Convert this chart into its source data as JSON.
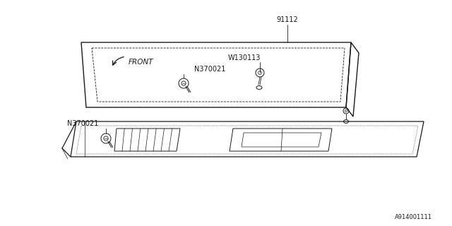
{
  "bg_color": "#ffffff",
  "line_color": "#1a1a1a",
  "figsize": [
    6.4,
    3.2
  ],
  "dpi": 100,
  "label_91112": "91112",
  "label_W130113": "W130113",
  "label_N370021": "N370021",
  "label_FRONT": "FRONT",
  "label_id": "A914001111",
  "font": "DejaVu Sans",
  "fontsize_label": 7,
  "fontsize_id": 6
}
